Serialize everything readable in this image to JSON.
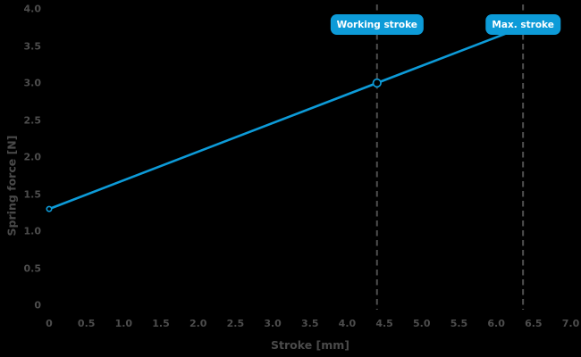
{
  "chart_data": {
    "type": "line",
    "title": "",
    "xlabel": "Stroke [mm]",
    "ylabel": "Spring force [N]",
    "xlim": [
      0,
      7.0
    ],
    "ylim": [
      0,
      4.0
    ],
    "grid": false,
    "legend": false,
    "x_tick_values": [
      0,
      0.5,
      1.0,
      1.5,
      2.0,
      2.5,
      3.0,
      3.5,
      4.0,
      4.5,
      5.0,
      5.5,
      6.0,
      6.5,
      7.0
    ],
    "x_tick_labels": [
      "0",
      "0.5",
      "1.0",
      "1.5",
      "2.0",
      "2.5",
      "3.0",
      "3.5",
      "4.0",
      "4.5",
      "5.0",
      "5.5",
      "6.0",
      "6.5",
      "7.0"
    ],
    "y_tick_values": [
      0,
      0.5,
      1.0,
      1.5,
      2.0,
      2.5,
      3.0,
      3.5,
      4.0
    ],
    "y_tick_labels": [
      "0",
      "0.5",
      "1.0",
      "1.5",
      "2.0",
      "2.5",
      "3.0",
      "3.5",
      "4.0"
    ],
    "series": [
      {
        "name": "spring-characteristic",
        "color": "#0d9bd8",
        "points": [
          {
            "x": 0,
            "y": 1.3
          },
          {
            "x": 4.4,
            "y": 3.0
          },
          {
            "x": 6.37,
            "y": 3.76
          }
        ]
      }
    ],
    "markers": [
      {
        "name": "preload-point",
        "x": 0,
        "y": 1.3,
        "style": "open-circle-small"
      },
      {
        "name": "working-point",
        "x": 4.4,
        "y": 3.0,
        "style": "open-circle"
      }
    ],
    "annotations": [
      {
        "name": "working-stroke",
        "label": "Working stroke",
        "x": 4.4
      },
      {
        "name": "max-stroke",
        "label": "Max. stroke",
        "x": 6.36
      }
    ]
  },
  "colors": {
    "background": "#000000",
    "accent_blue": "#0d9bd8",
    "text_gray": "#4d4d4d",
    "dash_gray": "#4f4f4f",
    "badge_text": "#ffffff",
    "marker_fill": "#000000"
  }
}
